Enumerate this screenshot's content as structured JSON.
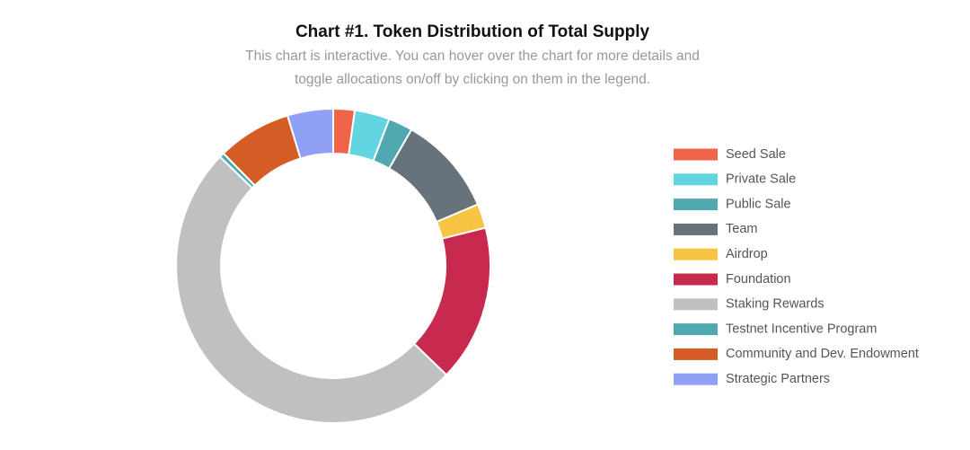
{
  "chart_data": {
    "type": "donut",
    "title": "Chart #1. Token Distribution of Total Supply",
    "subtitle": [
      "This chart is interactive. You can hover over the chart for more details and",
      "toggle allocations on/off by clicking on them in the legend."
    ],
    "categories": [
      "Seed Sale",
      "Private Sale",
      "Public Sale",
      "Team",
      "Airdrop",
      "Foundation",
      "Staking Rewards",
      "Testnet Incentive Program",
      "Community and Dev. Endowment",
      "Strategic Partners"
    ],
    "values": [
      2.2,
      3.6,
      2.5,
      10.3,
      2.5,
      16.1,
      50,
      0.5,
      7.6,
      4.7
    ],
    "colors": [
      "#f0654a",
      "#63d5e0",
      "#50a9b0",
      "#68727a",
      "#f7c444",
      "#c8294f",
      "#c0c0c0",
      "#50a9b0",
      "#d45d25",
      "#8fa0f5"
    ],
    "legend": "right"
  }
}
